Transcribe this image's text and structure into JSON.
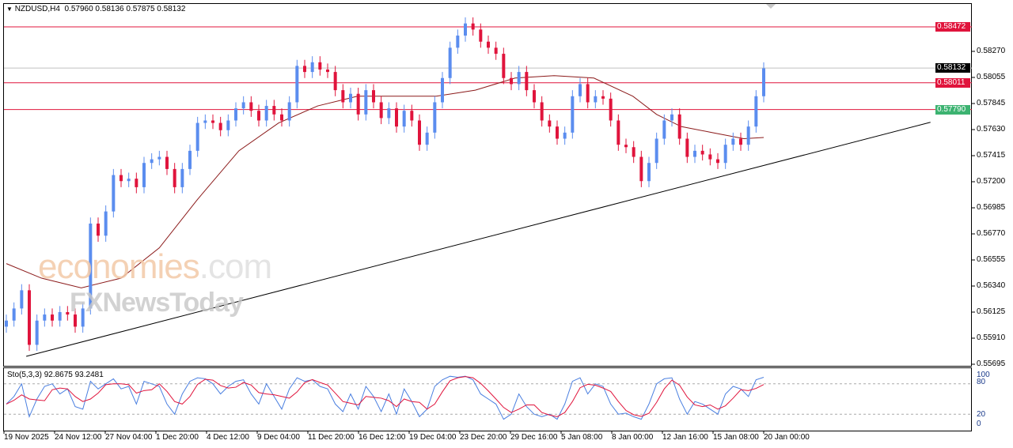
{
  "header": {
    "symbol": "NZDUSD,H4",
    "ohlc": "0.57960 0.58136 0.57875 0.58132"
  },
  "watermark": {
    "brand1": "economies",
    "brand1_suffix": ".com",
    "brand2": "FXNewsToday"
  },
  "price_axis": {
    "ticks": [
      "0.58270",
      "0.58055",
      "0.57845",
      "0.57630",
      "0.57415",
      "0.57200",
      "0.56985",
      "0.56770",
      "0.56555",
      "0.56340",
      "0.56125",
      "0.55910",
      "0.55695"
    ],
    "tags": [
      {
        "label": "0.58472",
        "value": 0.58472,
        "color": "#e0143c",
        "line_color": "#e0143c"
      },
      {
        "label": "0.58132",
        "value": 0.58132,
        "color": "#000000",
        "line_color": "#c0c0c0"
      },
      {
        "label": "0.58011",
        "value": 0.58011,
        "color": "#e0143c",
        "line_color": "#e0143c"
      },
      {
        "label": "0.57790",
        "value": 0.5779,
        "color": "#3cb371",
        "line_color": "#e0143c"
      }
    ]
  },
  "time_axis": [
    "19 Nov 2025",
    "24 Nov 12:00",
    "27 Nov 04:00",
    "1 Dec 20:00",
    "4 Dec 12:00",
    "9 Dec 04:00",
    "11 Dec 20:00",
    "16 Dec 12:00",
    "19 Dec 04:00",
    "23 Dec 20:00",
    "29 Dec 16:00",
    "5 Jan 08:00",
    "8 Jan 00:00",
    "12 Jan 16:00",
    "15 Jan 08:00",
    "20 Jan 00:00"
  ],
  "stochastic": {
    "label": "Sto(5,3,3) 92.8675 93.2481",
    "levels": [
      "100",
      "80",
      "20",
      "0"
    ],
    "main_color": "#4a7fe0",
    "signal_color": "#e0143c"
  },
  "chart_data": {
    "type": "candlestick",
    "symbol": "NZDUSD",
    "timeframe": "H4",
    "ylim": [
      0.55695,
      0.58472
    ],
    "up_color": "#5b8def",
    "down_color": "#e0143c",
    "closes": [
      0.5605,
      0.5615,
      0.563,
      0.5585,
      0.5605,
      0.561,
      0.5605,
      0.5612,
      0.561,
      0.56,
      0.5615,
      0.5685,
      0.5675,
      0.5695,
      0.5725,
      0.572,
      0.5722,
      0.5715,
      0.5735,
      0.5738,
      0.574,
      0.573,
      0.5715,
      0.573,
      0.5745,
      0.5768,
      0.577,
      0.5768,
      0.5762,
      0.577,
      0.578,
      0.5785,
      0.5778,
      0.577,
      0.5782,
      0.5775,
      0.577,
      0.5785,
      0.5815,
      0.581,
      0.5818,
      0.5812,
      0.581,
      0.5795,
      0.5785,
      0.5792,
      0.5775,
      0.5795,
      0.5785,
      0.5772,
      0.578,
      0.5765,
      0.5778,
      0.577,
      0.575,
      0.576,
      0.5785,
      0.5805,
      0.583,
      0.584,
      0.585,
      0.5845,
      0.5835,
      0.583,
      0.5825,
      0.5805,
      0.58,
      0.581,
      0.5795,
      0.5785,
      0.577,
      0.5765,
      0.5755,
      0.576,
      0.579,
      0.58,
      0.5785,
      0.579,
      0.5788,
      0.577,
      0.575,
      0.5748,
      0.574,
      0.572,
      0.5735,
      0.5755,
      0.577,
      0.5775,
      0.5755,
      0.574,
      0.5745,
      0.5742,
      0.5738,
      0.5735,
      0.575,
      0.5755,
      0.575,
      0.5765,
      0.579,
      0.5813
    ],
    "moving_average": [
      [
        0,
        0.5652
      ],
      [
        4.6,
        0.564
      ],
      [
        9.8,
        0.5632
      ],
      [
        15,
        0.564
      ],
      [
        20,
        0.5665
      ],
      [
        25,
        0.5705
      ],
      [
        30.4,
        0.5745
      ],
      [
        35.6,
        0.5768
      ],
      [
        40.7,
        0.5782
      ],
      [
        45.9,
        0.579
      ],
      [
        51,
        0.579
      ],
      [
        56.2,
        0.579
      ],
      [
        61.3,
        0.5795
      ],
      [
        66.5,
        0.5805
      ],
      [
        71.6,
        0.5807
      ],
      [
        76.8,
        0.5805
      ],
      [
        81.9,
        0.579
      ],
      [
        85,
        0.5775
      ],
      [
        88.2,
        0.5765
      ],
      [
        92.3,
        0.576
      ],
      [
        96.4,
        0.5755
      ],
      [
        99,
        0.5756
      ]
    ],
    "ma_color": "#8b1a1a",
    "trendline": [
      [
        2.6,
        0.55755
      ],
      [
        120.8,
        0.57685
      ]
    ],
    "stoch_main": [
      40,
      55,
      80,
      15,
      50,
      75,
      80,
      60,
      70,
      35,
      30,
      85,
      70,
      80,
      90,
      70,
      75,
      40,
      85,
      80,
      75,
      40,
      20,
      60,
      85,
      92,
      90,
      80,
      60,
      75,
      85,
      88,
      60,
      40,
      80,
      55,
      30,
      70,
      92,
      85,
      88,
      75,
      70,
      40,
      25,
      60,
      30,
      75,
      55,
      25,
      60,
      20,
      70,
      45,
      15,
      30,
      75,
      88,
      95,
      93,
      95,
      88,
      60,
      50,
      40,
      10,
      20,
      60,
      35,
      20,
      15,
      20,
      10,
      40,
      85,
      92,
      60,
      80,
      75,
      40,
      20,
      22,
      15,
      10,
      40,
      80,
      90,
      92,
      50,
      20,
      45,
      40,
      30,
      20,
      60,
      75,
      70,
      55,
      88,
      93
    ]
  }
}
